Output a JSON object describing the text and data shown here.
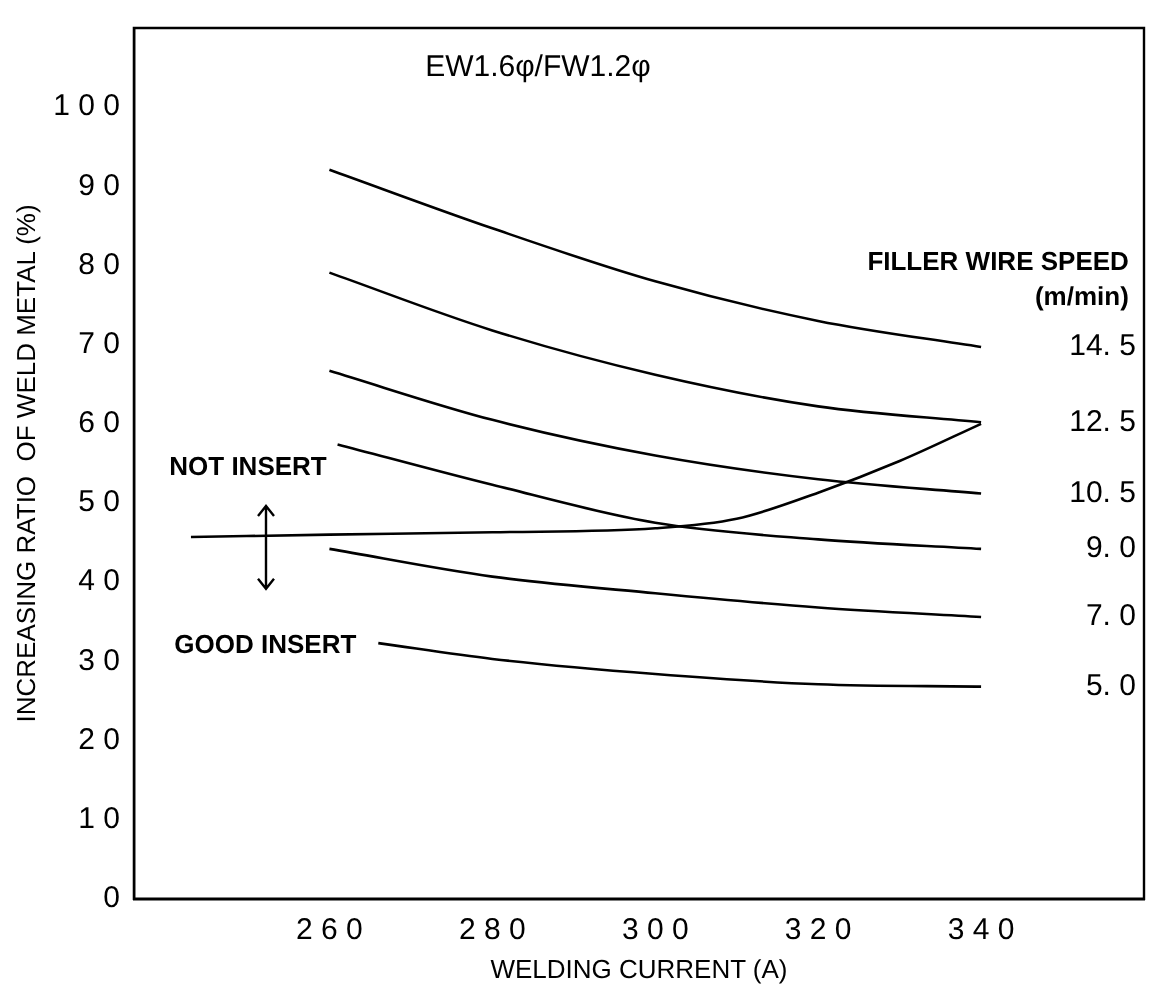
{
  "chart_data": {
    "type": "line",
    "title": "EW1.6φ/FW1.2φ",
    "xlabel": "WELDING CURRENT (A)",
    "ylabel": "INCREASING RATIO  OF WELD METAL (%)",
    "xlim": [
      236,
      360
    ],
    "xticks": [
      260,
      280,
      300,
      320,
      340
    ],
    "ylim": [
      0,
      110
    ],
    "yticks": [
      0,
      10,
      20,
      30,
      40,
      50,
      60,
      70,
      80,
      90,
      100
    ],
    "grid": false,
    "legend": false,
    "marker": "none",
    "line_style": "solid",
    "series": [
      {
        "name": "14. 5",
        "color": "#000000",
        "x": [
          260,
          280,
          300,
          320,
          340
        ],
        "values": [
          92.1,
          84.7,
          78,
          73,
          69.7
        ]
      },
      {
        "name": "12. 5",
        "color": "#000000",
        "x": [
          260,
          280,
          300,
          320,
          340
        ],
        "values": [
          79.1,
          71.8,
          66.2,
          62.2,
          60.2
        ]
      },
      {
        "name": "10. 5",
        "color": "#000000",
        "x": [
          260,
          280,
          300,
          320,
          340
        ],
        "values": [
          66.7,
          60.5,
          56,
          53,
          51.2
        ]
      },
      {
        "name": "9. 0",
        "color": "#000000",
        "x": [
          261,
          280,
          300,
          320,
          340
        ],
        "values": [
          57.4,
          52.3,
          47.5,
          45.4,
          44.2
        ]
      },
      {
        "name": "7. 0",
        "color": "#000000",
        "x": [
          260,
          280,
          300,
          320,
          340
        ],
        "values": [
          44.2,
          40.7,
          38.6,
          36.8,
          35.6
        ]
      },
      {
        "name": "5. 0",
        "color": "#000000",
        "x": [
          266,
          280,
          300,
          320,
          340
        ],
        "values": [
          32.3,
          30.3,
          28.4,
          27.1,
          26.8
        ]
      },
      {
        "color": "#000000",
        "x": [
          243,
          260,
          280,
          300,
          310,
          320,
          330,
          340
        ],
        "values": [
          45.7,
          46,
          46.3,
          46.8,
          48,
          51.3,
          55.3,
          60
        ]
      }
    ],
    "annotations": [
      "FILLER WIRE SPEED",
      "(m/min)",
      "NOT INSERT",
      "GOOD INSERT"
    ]
  }
}
